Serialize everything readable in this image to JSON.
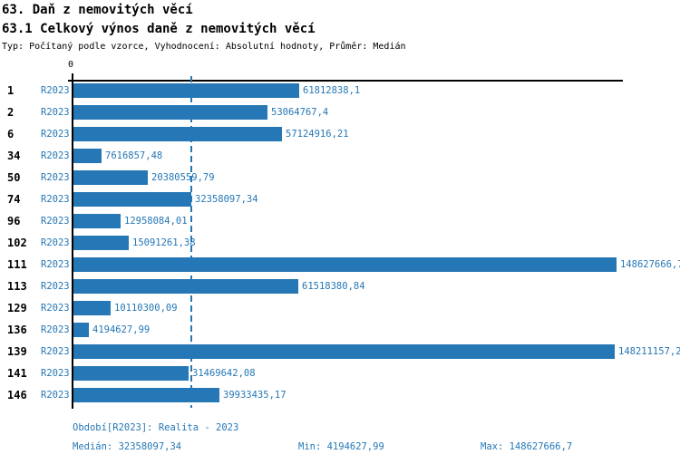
{
  "header": {
    "title": "63. Daň z nemovitých věcí",
    "subtitle": "63.1 Celkový výnos daně z nemovitých věcí",
    "meta": "Typ: Počítaný podle vzorce, Vyhodnocení: Absolutní hodnoty, Průměr: Medián"
  },
  "chart_data": {
    "type": "bar",
    "orientation": "horizontal",
    "title": "63.1 Celkový výnos daně z nemovitých věcí",
    "categories": [
      "1",
      "2",
      "6",
      "34",
      "50",
      "74",
      "96",
      "102",
      "111",
      "113",
      "129",
      "136",
      "139",
      "141",
      "146"
    ],
    "series": [
      {
        "name": "R2023",
        "values": [
          61812838.1,
          53064767.4,
          57124916.21,
          7616857.48,
          20380559.79,
          32358097.34,
          12958084.01,
          15091261.38,
          148627666.7,
          61518380.84,
          10110300.09,
          4194627.99,
          148211157.2,
          31469642.08,
          39933435.17
        ],
        "value_labels": [
          "61812838,1",
          "53064767,4",
          "57124916,21",
          "7616857,48",
          "20380559,79",
          "32358097,34",
          "12958084,01",
          "15091261,38",
          "148627666,7",
          "61518380,84",
          "10110300,09",
          "4194627,99",
          "148211157,2",
          "31469642,08",
          "39933435,17"
        ]
      }
    ],
    "x_axis_zero_label": "0",
    "xlim": [
      0,
      148627666.7
    ],
    "median_value": 32358097.34,
    "median_line": true,
    "grid": false,
    "legend": false,
    "bar_color": "#2577b5"
  },
  "footer": {
    "period": "Období[R2023]: Realita - 2023",
    "median": "Medián: 32358097,34",
    "min": "Min: 4194627,99",
    "max": "Max: 148627666,7"
  }
}
